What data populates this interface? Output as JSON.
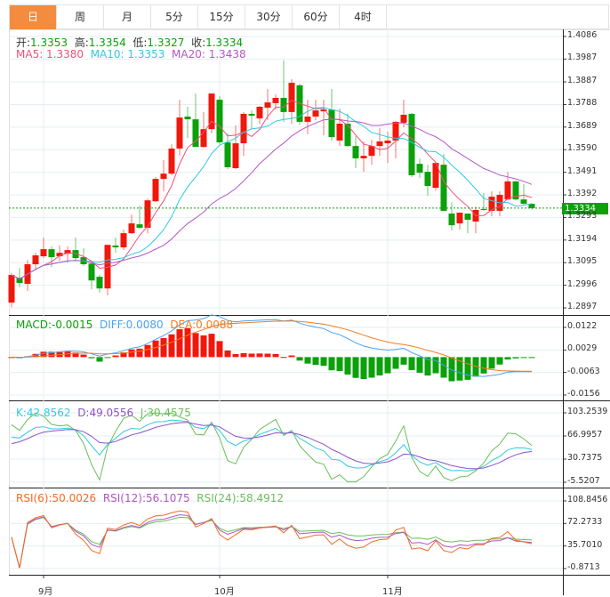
{
  "tabs": [
    {
      "label": "日",
      "active": true
    },
    {
      "label": "周"
    },
    {
      "label": "月"
    },
    {
      "label": "5分"
    },
    {
      "label": "15分"
    },
    {
      "label": "30分"
    },
    {
      "label": "60分"
    },
    {
      "label": "4时"
    }
  ],
  "colors": {
    "up": "#f0180c",
    "down": "#0aa10a",
    "ma5": "#f0507a",
    "ma10": "#2ecbe0",
    "ma20": "#b556c8",
    "diff": "#4aa4f0",
    "dea": "#f57b1f",
    "k": "#2ecbe0",
    "d": "#8c52c8",
    "j": "#6abe5a",
    "rsi6": "#f56b1f",
    "rsi12": "#b056c8",
    "rsi24": "#6abe5a",
    "accent": "#f38c3f"
  },
  "ohlc_info": {
    "open_label": "开:",
    "open": "1.3353",
    "high_label": "高:",
    "high": "1.3354",
    "low_label": "低:",
    "low": "1.3327",
    "close_label": "收:",
    "close": "1.3334"
  },
  "ma_info": {
    "ma5": "MA5: 1.3380",
    "ma10": "MA10: 1.3353",
    "ma20": "MA20: 1.3438"
  },
  "macd_info": {
    "macd": "MACD:-0.0015",
    "diff": "DIFF:0.0080",
    "dea": "DEA:0.0088"
  },
  "kdj_info": {
    "k": "K:42.8562",
    "d": "D:49.0556",
    "j": "J:30.4575"
  },
  "rsi_info": {
    "rsi6": "RSI(6):50.0026",
    "rsi12": "RSI(12):56.1075",
    "rsi24": "RSI(24):58.4912"
  },
  "current_price": "1.3334",
  "chart_data": {
    "type": "candlestick",
    "price_axis": {
      "ticks": [
        "1.4086",
        "1.3987",
        "1.3887",
        "1.3788",
        "1.3689",
        "1.3590",
        "1.3491",
        "1.3392",
        "1.3293",
        "1.3194",
        "1.3095",
        "1.2996",
        "1.2897"
      ],
      "range": [
        1.2897,
        1.4086
      ]
    },
    "macd_axis": {
      "ticks": [
        "0.0122",
        "0.0029",
        "-0.0063",
        "-0.0156"
      ],
      "range": [
        -0.0156,
        0.0122
      ]
    },
    "kdj_axis": {
      "ticks": [
        "103.2539",
        "66.9957",
        "30.7375",
        "-5.5207"
      ],
      "range": [
        -5.5207,
        103.2539
      ]
    },
    "rsi_axis": {
      "ticks": [
        "108.8456",
        "72.2733",
        "35.7010",
        "-0.8713"
      ],
      "range": [
        -0.8713,
        108.8456
      ]
    },
    "x_labels": [
      {
        "label": "9月",
        "index": 4
      },
      {
        "label": "10月",
        "index": 26
      },
      {
        "label": "11月",
        "index": 47
      }
    ],
    "candles_ohlc": [
      [
        1.292,
        1.3049,
        1.29,
        1.3041
      ],
      [
        1.3029,
        1.3072,
        1.2986,
        1.3006
      ],
      [
        1.3002,
        1.3107,
        1.2971,
        1.3088
      ],
      [
        1.3088,
        1.3138,
        1.3064,
        1.3127
      ],
      [
        1.3123,
        1.3205,
        1.3115,
        1.3154
      ],
      [
        1.3154,
        1.3166,
        1.3076,
        1.3119
      ],
      [
        1.3123,
        1.317,
        1.3103,
        1.3138
      ],
      [
        1.3134,
        1.3166,
        1.3095,
        1.315
      ],
      [
        1.315,
        1.3205,
        1.3107,
        1.3115
      ],
      [
        1.3119,
        1.3158,
        1.308,
        1.3088
      ],
      [
        1.3091,
        1.3103,
        1.2978,
        1.3017
      ],
      [
        1.3033,
        1.3041,
        1.2963,
        1.2982
      ],
      [
        1.2982,
        1.3173,
        1.2951,
        1.3173
      ],
      [
        1.317,
        1.3205,
        1.3138,
        1.3162
      ],
      [
        1.3162,
        1.324,
        1.315,
        1.3224
      ],
      [
        1.3224,
        1.3306,
        1.322,
        1.3267
      ],
      [
        1.3263,
        1.3345,
        1.3244,
        1.3248
      ],
      [
        1.3248,
        1.3376,
        1.3224,
        1.3368
      ],
      [
        1.3364,
        1.347,
        1.336,
        1.3462
      ],
      [
        1.3462,
        1.3544,
        1.3407,
        1.3485
      ],
      [
        1.3485,
        1.3614,
        1.3478,
        1.3595
      ],
      [
        1.3595,
        1.3809,
        1.3563,
        1.3731
      ],
      [
        1.3735,
        1.3778,
        1.3641,
        1.3723
      ],
      [
        1.3723,
        1.3836,
        1.3602,
        1.3602
      ],
      [
        1.3602,
        1.3755,
        1.3598,
        1.368
      ],
      [
        1.368,
        1.3836,
        1.3661,
        1.3836
      ],
      [
        1.3809,
        1.3825,
        1.3614,
        1.3622
      ],
      [
        1.3622,
        1.3661,
        1.3505,
        1.3513
      ],
      [
        1.3509,
        1.3696,
        1.3505,
        1.3618
      ],
      [
        1.3618,
        1.3755,
        1.3563,
        1.3747
      ],
      [
        1.3747,
        1.3762,
        1.368,
        1.3739
      ],
      [
        1.3727,
        1.3782,
        1.3704,
        1.3778
      ],
      [
        1.3774,
        1.3856,
        1.3719,
        1.3797
      ],
      [
        1.3794,
        1.3832,
        1.3766,
        1.3817
      ],
      [
        1.3817,
        1.3981,
        1.3712,
        1.3755
      ],
      [
        1.3755,
        1.3899,
        1.3704,
        1.3883
      ],
      [
        1.3872,
        1.3879,
        1.37,
        1.3712
      ],
      [
        1.3712,
        1.3809,
        1.3657,
        1.3735
      ],
      [
        1.3735,
        1.3809,
        1.3719,
        1.3762
      ],
      [
        1.3758,
        1.3809,
        1.3653,
        1.3766
      ],
      [
        1.3766,
        1.3856,
        1.363,
        1.3645
      ],
      [
        1.363,
        1.377,
        1.3606,
        1.3704
      ],
      [
        1.3704,
        1.3747,
        1.3602,
        1.3606
      ],
      [
        1.3606,
        1.3649,
        1.3509,
        1.3552
      ],
      [
        1.3552,
        1.3626,
        1.3493,
        1.3563
      ],
      [
        1.3563,
        1.3634,
        1.3524,
        1.3606
      ],
      [
        1.3606,
        1.3684,
        1.3563,
        1.3626
      ],
      [
        1.3618,
        1.3669,
        1.3532,
        1.363
      ],
      [
        1.363,
        1.3716,
        1.3552,
        1.3712
      ],
      [
        1.3708,
        1.3809,
        1.3688,
        1.3743
      ],
      [
        1.3747,
        1.3751,
        1.347,
        1.3478
      ],
      [
        1.3528,
        1.3552,
        1.3466,
        1.3489
      ],
      [
        1.3493,
        1.3524,
        1.3388,
        1.3431
      ],
      [
        1.3423,
        1.3532,
        1.3411,
        1.3532
      ],
      [
        1.3524,
        1.3571,
        1.3322,
        1.3322
      ],
      [
        1.331,
        1.336,
        1.3236,
        1.3259
      ],
      [
        1.3267,
        1.3314,
        1.324,
        1.3314
      ],
      [
        1.331,
        1.331,
        1.3224,
        1.3283
      ],
      [
        1.3275,
        1.3341,
        1.3224,
        1.3326
      ],
      [
        1.333,
        1.34,
        1.3322,
        1.3326
      ],
      [
        1.3322,
        1.3407,
        1.3298,
        1.3384
      ],
      [
        1.3322,
        1.3407,
        1.3298,
        1.3392
      ],
      [
        1.3372,
        1.3493,
        1.3368,
        1.3451
      ],
      [
        1.3451,
        1.3454,
        1.3368,
        1.3372
      ],
      [
        1.3372,
        1.3439,
        1.3349,
        1.3353
      ],
      [
        1.3353,
        1.3354,
        1.3327,
        1.3334
      ]
    ]
  }
}
